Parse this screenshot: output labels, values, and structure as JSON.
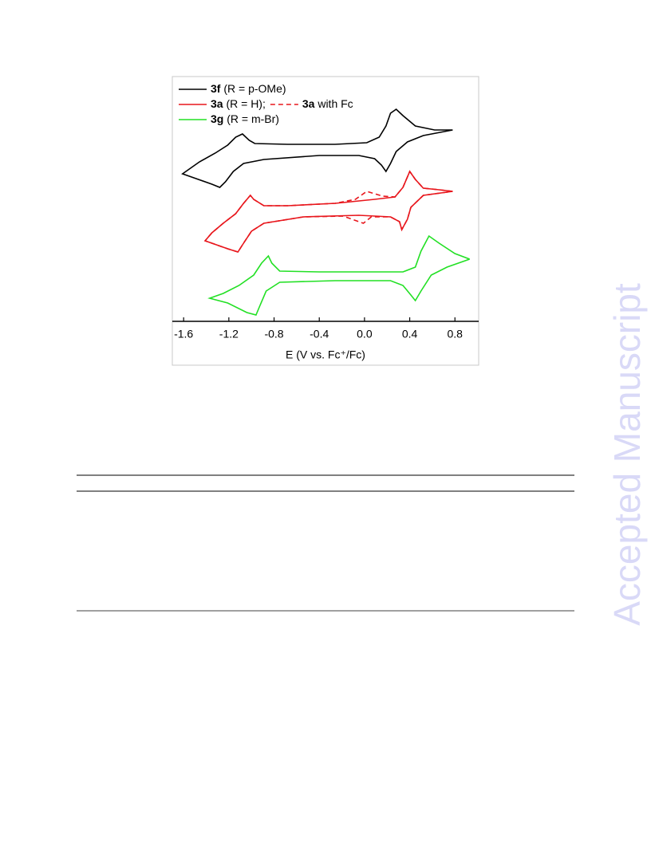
{
  "watermark": "Accepted Manuscript",
  "chart_data": {
    "type": "line",
    "xlabel": "E (V vs. Fc⁺/Fc)",
    "xlim": [
      -1.7,
      1.01
    ],
    "xticks": [
      -1.6,
      -1.2,
      -0.8,
      -0.4,
      {
        "value": 0,
        "label": "0.0"
      },
      0.4,
      0.8
    ],
    "ylim": [
      0,
      307
    ],
    "legend": "upper left",
    "series": [
      {
        "name": "3f (R = p-OMe)",
        "color": "#000000",
        "dash": false,
        "x": [
          0.78,
          0.62,
          0.45,
          0.34,
          0.28,
          0.23,
          0.19,
          0.13,
          0.02,
          -0.26,
          -0.68,
          -0.97,
          -1.02,
          -1.08,
          -1.14,
          -1.21,
          -1.32,
          -1.46,
          -1.61,
          -1.49,
          -1.35,
          -1.28,
          -1.23,
          -1.16,
          -1.07,
          -0.89,
          -0.4,
          -0.05,
          0.09,
          0.15,
          0.19,
          0.23,
          0.28,
          0.38,
          0.52,
          0.78
        ],
        "values": [
          240,
          240,
          245,
          258,
          266,
          261,
          245,
          231,
          224,
          222,
          222,
          223,
          227,
          235,
          231,
          221,
          211,
          200,
          185,
          179,
          172,
          168,
          175,
          188,
          198,
          203,
          208,
          208,
          204,
          196,
          188,
          198,
          213,
          225,
          233,
          240
        ]
      },
      {
        "name": "3a (R = H);",
        "color": "#e8161c",
        "dash": false,
        "x": [
          0.78,
          0.66,
          0.52,
          0.45,
          0.4,
          0.34,
          0.27,
          0.09,
          -0.26,
          -0.68,
          -0.89,
          -0.98,
          -1.01,
          -1.07,
          -1.14,
          -1.25,
          -1.35,
          -1.41,
          -1.35,
          -1.21,
          -1.12,
          -1.07,
          -1.0,
          -0.89,
          -0.54,
          -0.05,
          0.23,
          0.31,
          0.33,
          0.38,
          0.41,
          0.52,
          0.78
        ],
        "values": [
          163,
          165,
          167,
          178,
          188,
          168,
          156,
          153,
          148,
          145,
          145,
          153,
          158,
          148,
          135,
          123,
          111,
          101,
          98,
          91,
          87,
          98,
          113,
          123,
          131,
          133,
          131,
          125,
          115,
          128,
          143,
          158,
          163
        ]
      },
      {
        "name": "3a with Fc",
        "color": "#e8161c",
        "dash": true,
        "x": [
          0.78,
          0.66,
          0.52,
          0.45,
          0.4,
          0.34,
          0.27,
          0.16,
          0.02,
          -0.08,
          -0.26,
          -0.68,
          -0.89,
          -0.98,
          -1.01,
          -1.07,
          -1.14,
          -1.25,
          -1.35,
          -1.41,
          -1.35,
          -1.21,
          -1.12,
          -1.07,
          -1.0,
          -0.89,
          -0.54,
          -0.19,
          -0.01,
          0.06,
          0.23,
          0.31,
          0.33,
          0.38,
          0.41,
          0.52,
          0.78
        ],
        "values": [
          163,
          165,
          167,
          178,
          188,
          168,
          156,
          157,
          163,
          153,
          148,
          145,
          145,
          153,
          158,
          148,
          135,
          123,
          111,
          101,
          98,
          91,
          87,
          98,
          113,
          123,
          131,
          132,
          123,
          131,
          131,
          125,
          115,
          128,
          143,
          158,
          163
        ]
      },
      {
        "name": "3g (R = m-Br)",
        "color": "#22e024",
        "dash": false,
        "x": [
          0.93,
          0.8,
          0.66,
          0.57,
          0.5,
          0.45,
          0.34,
          -0.4,
          -0.75,
          -0.82,
          -0.85,
          -0.91,
          -0.98,
          -1.11,
          -1.25,
          -1.37,
          -1.21,
          -1.04,
          -0.96,
          -0.93,
          -0.87,
          -0.75,
          -0.26,
          0.23,
          0.34,
          0.41,
          0.45,
          0.5,
          0.59,
          0.73,
          0.93
        ],
        "values": [
          78,
          85,
          98,
          107,
          88,
          68,
          62,
          62,
          63,
          73,
          82,
          73,
          58,
          45,
          35,
          29,
          23,
          11,
          8,
          18,
          38,
          49,
          51,
          51,
          45,
          33,
          26,
          38,
          58,
          68,
          78
        ]
      }
    ]
  }
}
